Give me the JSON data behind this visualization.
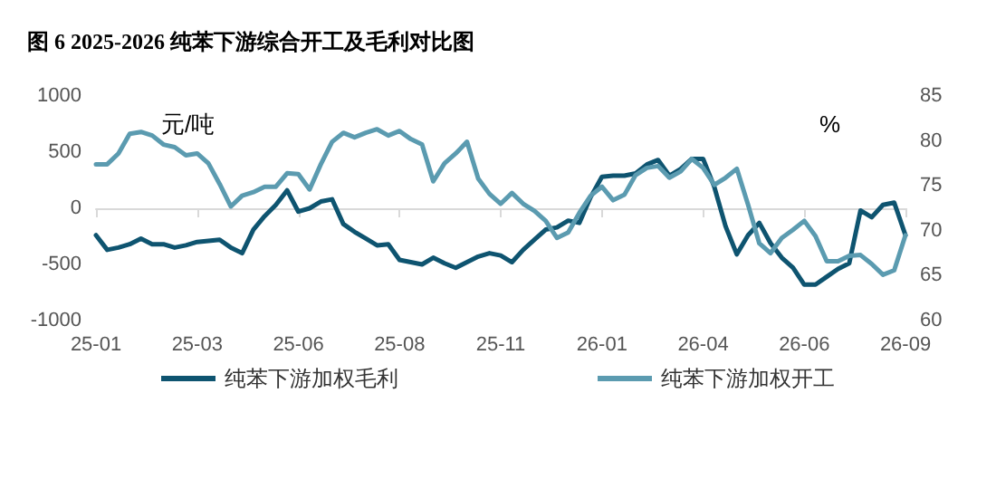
{
  "chart_data": {
    "type": "line",
    "title": "图 6 2025-2026 纯苯下游综合开工及毛利对比图",
    "ylabel": "元/吨",
    "y2label": "%",
    "categories": [
      "25-01",
      null,
      null,
      null,
      null,
      null,
      null,
      null,
      null,
      "25-03",
      null,
      null,
      null,
      null,
      null,
      null,
      null,
      null,
      "25-06",
      null,
      null,
      null,
      null,
      null,
      null,
      null,
      null,
      "25-08",
      null,
      null,
      null,
      null,
      null,
      null,
      null,
      null,
      "25-11",
      null,
      null,
      null,
      null,
      null,
      null,
      null,
      null,
      "26-01",
      null,
      null,
      null,
      null,
      null,
      null,
      null,
      null,
      "26-04",
      null,
      null,
      null,
      null,
      null,
      null,
      null,
      null,
      "26-06",
      null,
      null,
      null,
      null,
      null,
      null,
      null,
      null,
      "26-09"
    ],
    "series": [
      {
        "name": "纯苯下游加权毛利",
        "color": "#0e5470",
        "values": [
          -240,
          -370,
          -350,
          -320,
          -270,
          -320,
          -320,
          -350,
          -330,
          -300,
          -290,
          -280,
          -350,
          -400,
          -190,
          -70,
          30,
          160,
          -30,
          0,
          60,
          80,
          -140,
          -210,
          -270,
          -330,
          -320,
          -460,
          -480,
          -500,
          -440,
          -490,
          -530,
          -480,
          -430,
          -400,
          -420,
          -480,
          -370,
          -280,
          -190,
          -170,
          -110,
          -130,
          100,
          280,
          290,
          290,
          310,
          390,
          430,
          290,
          350,
          440,
          440,
          190,
          -160,
          -410,
          -240,
          -130,
          -310,
          -440,
          -530,
          -680,
          -680,
          -610,
          -540,
          -490,
          -20,
          -80,
          30,
          50,
          -240
        ]
      },
      {
        "name": "纯苯下游加权开工",
        "color": "#5b9bb0",
        "axis": "y2",
        "values": [
          77.4,
          77.4,
          78.6,
          80.8,
          81,
          80.6,
          79.6,
          79.3,
          78.4,
          78.6,
          77.5,
          75.2,
          72.7,
          73.9,
          74.3,
          74.9,
          74.9,
          76.4,
          76.3,
          74.6,
          77.4,
          79.9,
          80.9,
          80.4,
          80.9,
          81.3,
          80.6,
          81.1,
          80.2,
          79.6,
          75.5,
          77.5,
          78.6,
          79.9,
          75.8,
          74.1,
          73,
          74.2,
          73,
          72.2,
          71.1,
          69.2,
          69.8,
          72,
          73.9,
          74.9,
          73.4,
          74,
          76.2,
          77,
          77.2,
          75.9,
          76.6,
          78,
          77,
          75.1,
          75.9,
          76.9,
          72.9,
          68.6,
          67.5,
          69.2,
          70.1,
          71.1,
          69.4,
          66.6,
          66.6,
          67.2,
          67.3,
          66.3,
          65.1,
          65.6,
          69.5
        ]
      }
    ],
    "ylim": [
      -1000,
      1000
    ],
    "yticks": [
      -1000,
      -500,
      0,
      500,
      1000
    ],
    "y2lim": [
      60,
      85
    ],
    "y2ticks": [
      60,
      65,
      70,
      75,
      80,
      85
    ],
    "legend": "bottom",
    "marker": "none",
    "line_style": "solid"
  }
}
